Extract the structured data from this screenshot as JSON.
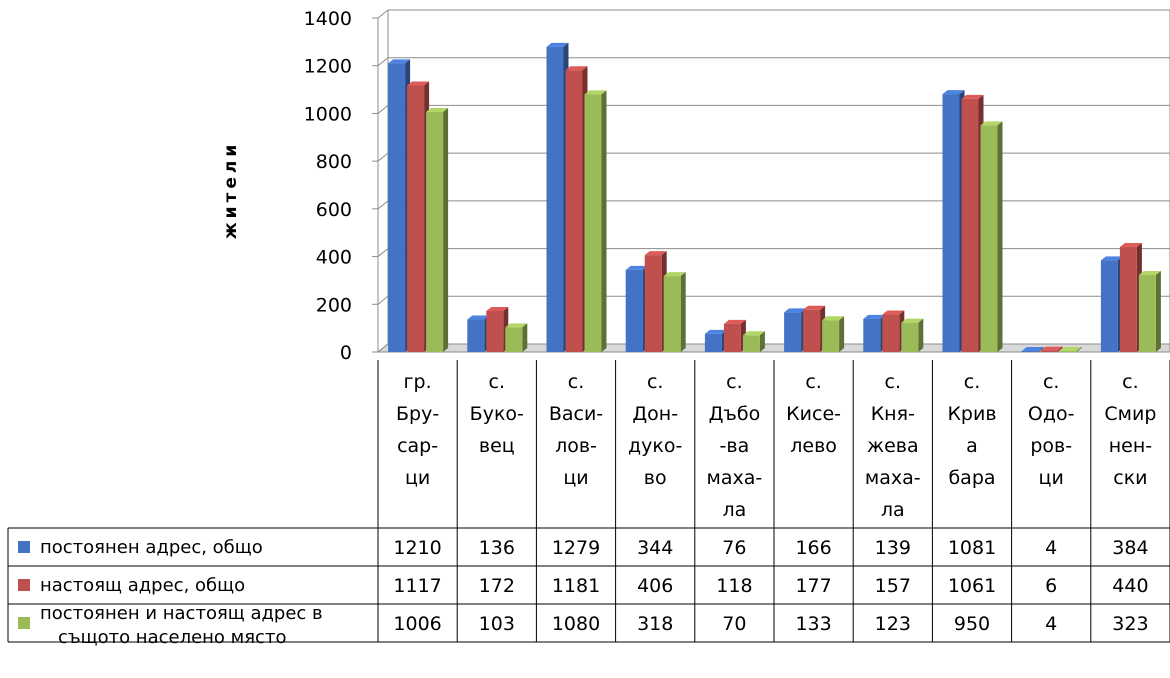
{
  "chart_data": {
    "type": "bar",
    "ylabel": "жители",
    "ylim": [
      0,
      1400
    ],
    "yticks": [
      0,
      200,
      400,
      600,
      800,
      1000,
      1200,
      1400
    ],
    "grid": true,
    "legend": "data-table-left",
    "categories": [
      [
        "гр.",
        "Бру-",
        "сар-",
        "ци"
      ],
      [
        "с.",
        "Буко-",
        "вец"
      ],
      [
        "с.",
        "Васи-",
        "лов-",
        "ци"
      ],
      [
        "с.",
        "Дон-",
        "дуко-",
        "во"
      ],
      [
        "с.",
        "Дъбо",
        "-ва",
        "маха-",
        "ла"
      ],
      [
        "с.",
        "Кисе-",
        "лево"
      ],
      [
        "с.",
        "Кня-",
        "жева",
        "маха-",
        "ла"
      ],
      [
        "с.",
        "Крив",
        "а",
        "бара"
      ],
      [
        "с.",
        "Одо-",
        "ров-",
        "ци"
      ],
      [
        "с.",
        "Смир",
        "нен-",
        "ски"
      ]
    ],
    "series": [
      {
        "name": [
          "постоянен адрес, общо"
        ],
        "color": "#4472C4",
        "values": [
          1210,
          136,
          1279,
          344,
          76,
          166,
          139,
          1081,
          4,
          384
        ]
      },
      {
        "name": [
          "настоящ адрес, общо"
        ],
        "color": "#C0504D",
        "values": [
          1117,
          172,
          1181,
          406,
          118,
          177,
          157,
          1061,
          6,
          440
        ]
      },
      {
        "name": [
          "постоянен и настоящ адрес в",
          "същото населено място"
        ],
        "color": "#9BBB59",
        "values": [
          1006,
          103,
          1080,
          318,
          70,
          133,
          123,
          950,
          4,
          323
        ]
      }
    ]
  }
}
